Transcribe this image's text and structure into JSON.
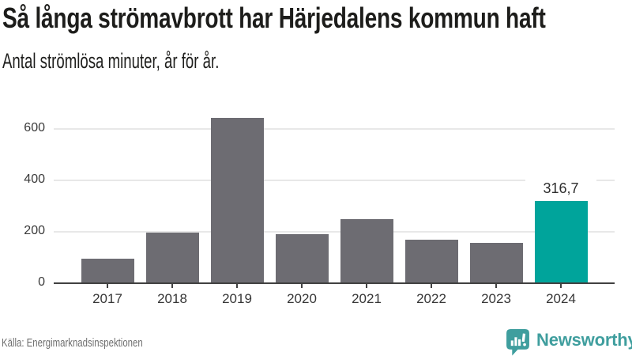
{
  "header": {
    "title": "Så långa strömavbrott har Härjedalens kommun haft",
    "subtitle": "Antal strömlösa minuter, år för år."
  },
  "chart_data": {
    "type": "bar",
    "title": "Så långa strömavbrott har Härjedalens kommun haft",
    "subtitle": "Antal strömlösa minuter, år för år.",
    "ylabel": "",
    "xlabel": "",
    "categories": [
      "2017",
      "2018",
      "2019",
      "2020",
      "2021",
      "2022",
      "2023",
      "2024"
    ],
    "values": [
      92,
      195,
      640,
      188,
      245,
      166,
      154,
      316.7
    ],
    "highlight_index": 7,
    "data_labels": [
      {
        "index": 7,
        "text": "316,7"
      }
    ],
    "yticks": [
      0,
      200,
      400,
      600
    ],
    "ylim": [
      0,
      660
    ],
    "grid": "horizontal",
    "legend": "none",
    "bar_color": "#6d6c72",
    "highlight_color": "#00a49b",
    "axis_color": "#414141",
    "gridline_color": "#e8e8e8"
  },
  "footer": {
    "source": "Källa: Energimarknadsinspektionen",
    "brand": "Newsworthy",
    "brand_color": "#3f9e9e"
  }
}
